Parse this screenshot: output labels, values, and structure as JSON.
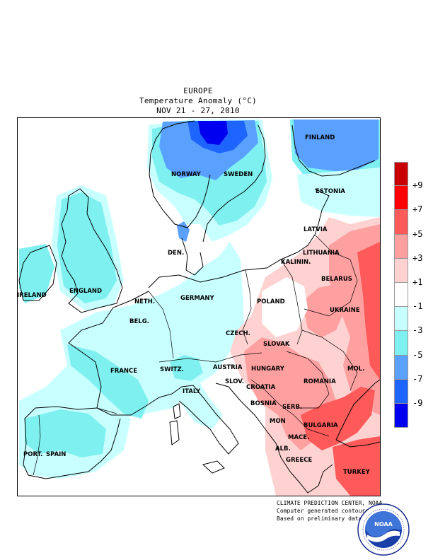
{
  "title": {
    "region": "EUROPE",
    "variable": "Temperature Anomaly (°C)",
    "period": "NOV 21 - 27, 2010"
  },
  "legend": {
    "levels": [
      {
        "label": "+9",
        "color": "#c80000"
      },
      {
        "label": "+7",
        "color": "#ff0000"
      },
      {
        "label": "+5",
        "color": "#ff5a5a"
      },
      {
        "label": "+3",
        "color": "#ffa0a0"
      },
      {
        "label": "+1",
        "color": "#ffd2d2"
      },
      {
        "label": "-1",
        "color": "#ffffff"
      },
      {
        "label": "-3",
        "color": "#c8ffff"
      },
      {
        "label": "-5",
        "color": "#7ef0f0"
      },
      {
        "label": "-7",
        "color": "#5aa0ff"
      },
      {
        "label": "-9",
        "color": "#1e64ff"
      },
      {
        "label": "",
        "color": "#0000f0"
      }
    ]
  },
  "countries": [
    {
      "name": "FINLAND"
    },
    {
      "name": "NORWAY"
    },
    {
      "name": "SWEDEN"
    },
    {
      "name": "ESTONIA"
    },
    {
      "name": "LATVIA"
    },
    {
      "name": "LITHUANIA"
    },
    {
      "name": "KALININ."
    },
    {
      "name": "DEN."
    },
    {
      "name": "IRELAND"
    },
    {
      "name": "ENGLAND"
    },
    {
      "name": "NETH."
    },
    {
      "name": "GERMANY"
    },
    {
      "name": "POLAND"
    },
    {
      "name": "BELARUS"
    },
    {
      "name": "BELG."
    },
    {
      "name": "CZECH."
    },
    {
      "name": "UKRAINE"
    },
    {
      "name": "SLOVAK"
    },
    {
      "name": "FRANCE"
    },
    {
      "name": "SWITZ."
    },
    {
      "name": "AUSTRIA"
    },
    {
      "name": "HUNGARY"
    },
    {
      "name": "MOL."
    },
    {
      "name": "ITALY"
    },
    {
      "name": "SLOV."
    },
    {
      "name": "CROATIA"
    },
    {
      "name": "ROMANIA"
    },
    {
      "name": "BOSNIA"
    },
    {
      "name": "SERB."
    },
    {
      "name": "MON"
    },
    {
      "name": "BULGARIA"
    },
    {
      "name": "PORT."
    },
    {
      "name": "SPAIN"
    },
    {
      "name": "MACE."
    },
    {
      "name": "ALB."
    },
    {
      "name": "GREECE"
    },
    {
      "name": "TURKEY"
    }
  ],
  "credits": {
    "line1": "CLIMATE PREDICTION CENTER, NOAA",
    "line2": "Computer generated contours",
    "line3": "Based on preliminary data"
  },
  "logo": {
    "text": "NOAA",
    "icon": "noaa-logo-icon"
  }
}
